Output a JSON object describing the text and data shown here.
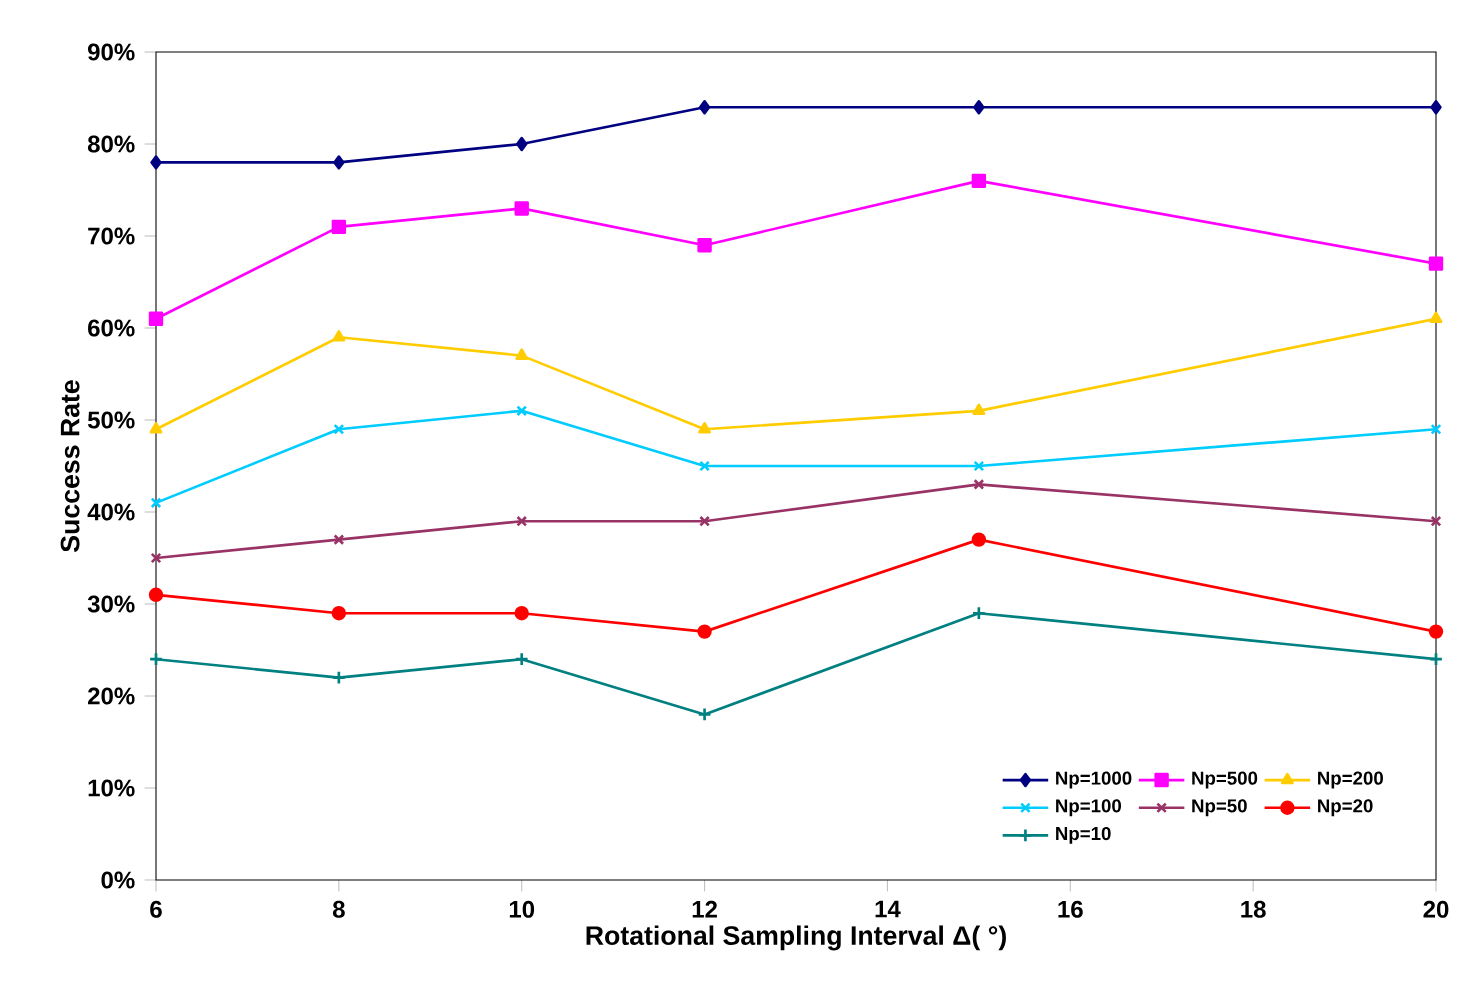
{
  "chart_data": {
    "type": "line",
    "xlabel": "Rotational Sampling Interval Δ( °)",
    "ylabel": "Success Rate",
    "x": [
      6,
      8,
      10,
      12,
      15,
      20
    ],
    "xlim": [
      6,
      20
    ],
    "xticks": [
      6,
      8,
      10,
      12,
      14,
      16,
      18,
      20
    ],
    "ylim": [
      0,
      90
    ],
    "yticks": [
      {
        "value": 0,
        "label": "0%"
      },
      {
        "value": 10,
        "label": "10%"
      },
      {
        "value": 20,
        "label": "20%"
      },
      {
        "value": 30,
        "label": "30%"
      },
      {
        "value": 40,
        "label": "40%"
      },
      {
        "value": 50,
        "label": "50%"
      },
      {
        "value": 60,
        "label": "60%"
      },
      {
        "value": 70,
        "label": "70%"
      },
      {
        "value": 80,
        "label": "80%"
      },
      {
        "value": 90,
        "label": "90%"
      }
    ],
    "legend": "bottom right",
    "grid": false,
    "line_style": "solid",
    "series": [
      {
        "name": "Np=1000",
        "color": "#000080",
        "marker": "diamond",
        "values": [
          78,
          78,
          80,
          84,
          84,
          84
        ]
      },
      {
        "name": "Np=500",
        "color": "#ff00ff",
        "marker": "square",
        "values": [
          61,
          71,
          73,
          69,
          76,
          67
        ]
      },
      {
        "name": "Np=200",
        "color": "#ffcc00",
        "marker": "triangle",
        "values": [
          49,
          59,
          57,
          49,
          51,
          61
        ]
      },
      {
        "name": "Np=100",
        "color": "#00ccff",
        "marker": "cross",
        "values": [
          41,
          49,
          51,
          45,
          45,
          49
        ]
      },
      {
        "name": "Np=50",
        "color": "#993366",
        "marker": "cross",
        "values": [
          35,
          37,
          39,
          39,
          43,
          39
        ]
      },
      {
        "name": "Np=20",
        "color": "#ff0000",
        "marker": "circle",
        "values": [
          31,
          29,
          29,
          27,
          37,
          27
        ]
      },
      {
        "name": "Np=10",
        "color": "#008080",
        "marker": "plus",
        "values": [
          24,
          22,
          24,
          18,
          29,
          24
        ]
      }
    ]
  }
}
